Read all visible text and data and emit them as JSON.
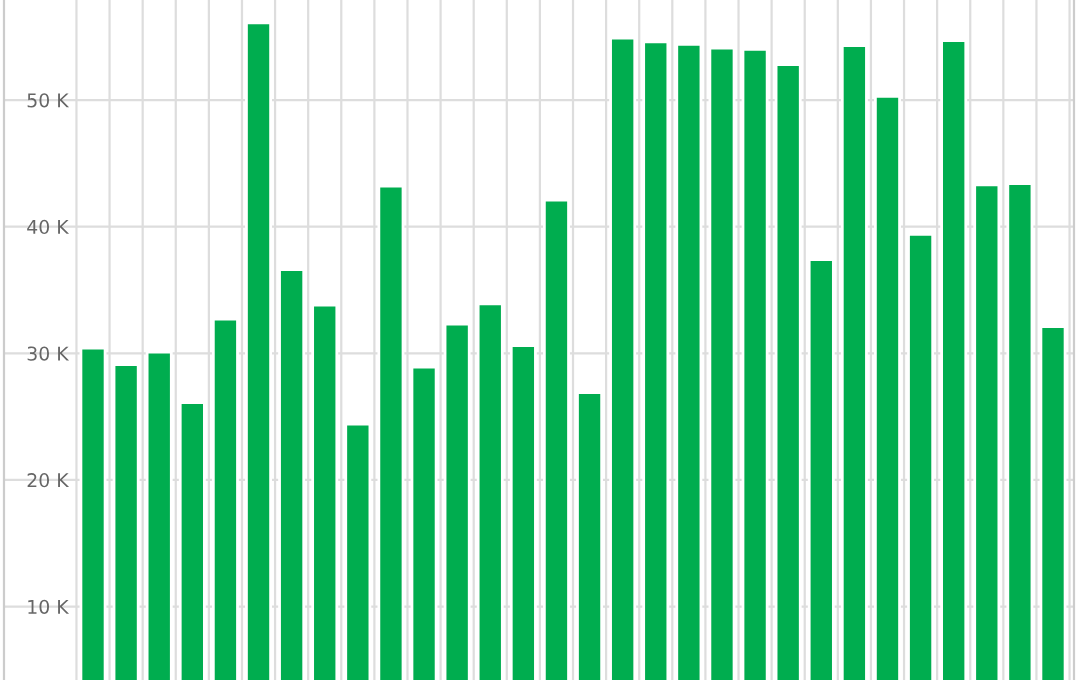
{
  "chart_data": {
    "type": "bar",
    "categories": [
      null,
      null,
      null,
      null,
      null,
      null,
      null,
      null,
      null,
      null,
      null,
      null,
      null,
      null,
      null,
      null,
      null,
      null,
      null,
      null,
      null,
      null,
      null,
      null,
      null,
      null,
      null,
      null,
      null,
      null
    ],
    "values": [
      30400,
      29100,
      30100,
      26100,
      32700,
      56100,
      36600,
      33800,
      24400,
      43200,
      28900,
      32300,
      33900,
      30600,
      42100,
      26900,
      54900,
      54600,
      54400,
      54100,
      54000,
      52800,
      37400,
      54300,
      50300,
      39400,
      54700,
      43300,
      43400,
      32100
    ],
    "color": "#00ad4f",
    "ylim": [
      4200,
      57900
    ],
    "yticks": [
      {
        "value": 10000,
        "label": "10 K"
      },
      {
        "value": 20000,
        "label": "20 K"
      },
      {
        "value": 30000,
        "label": "30 K"
      },
      {
        "value": 40000,
        "label": "40 K"
      },
      {
        "value": 50000,
        "label": "50 K"
      }
    ],
    "grid": true,
    "legend": false
  }
}
